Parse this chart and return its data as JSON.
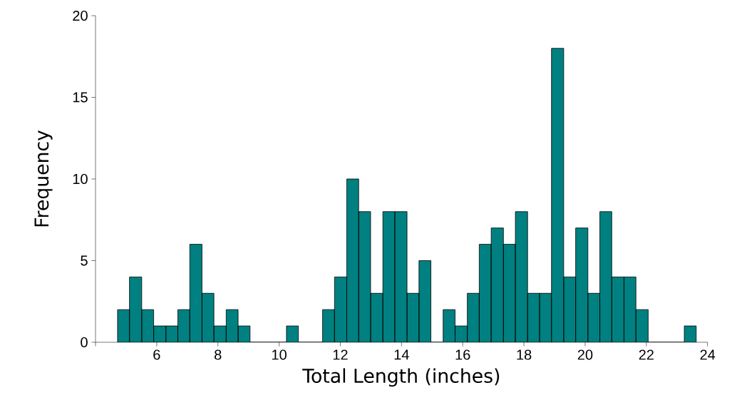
{
  "chart_data": {
    "type": "histogram",
    "xlabel": "Total Length (inches)",
    "ylabel": "Frequency",
    "color": "#008080",
    "bins": [
      4.72,
      5.11,
      5.51,
      5.9,
      6.3,
      6.69,
      7.08,
      7.48,
      7.87,
      8.27,
      8.66,
      9.05,
      9.45,
      9.84,
      10.24,
      10.63,
      11.02,
      11.42,
      11.81,
      12.21,
      12.6,
      12.99,
      13.39,
      13.78,
      14.18,
      14.57,
      14.96,
      15.36,
      15.75,
      16.15,
      16.54,
      16.93,
      17.33,
      17.72,
      18.12,
      18.51,
      18.9,
      19.3,
      19.69,
      20.09,
      20.48,
      20.87,
      21.27,
      21.66,
      22.06,
      22.45,
      22.84,
      23.24,
      23.63
    ],
    "values": [
      2,
      4,
      2,
      1,
      1,
      2,
      6,
      3,
      1,
      2,
      1,
      0,
      0,
      0,
      1,
      0,
      0,
      2,
      4,
      10,
      8,
      3,
      8,
      8,
      3,
      5,
      0,
      2,
      1,
      3,
      6,
      7,
      6,
      8,
      3,
      3,
      18,
      4,
      7,
      3,
      8,
      4,
      4,
      2,
      0,
      0,
      0,
      1
    ],
    "xlim": [
      4,
      24
    ],
    "ylim": [
      0,
      20
    ],
    "xticks": [
      {
        "value": 4,
        "label": null
      },
      6,
      8,
      10,
      12,
      14,
      16,
      18,
      20,
      22,
      24
    ],
    "yticks": [
      0,
      5,
      10,
      15,
      20
    ]
  }
}
